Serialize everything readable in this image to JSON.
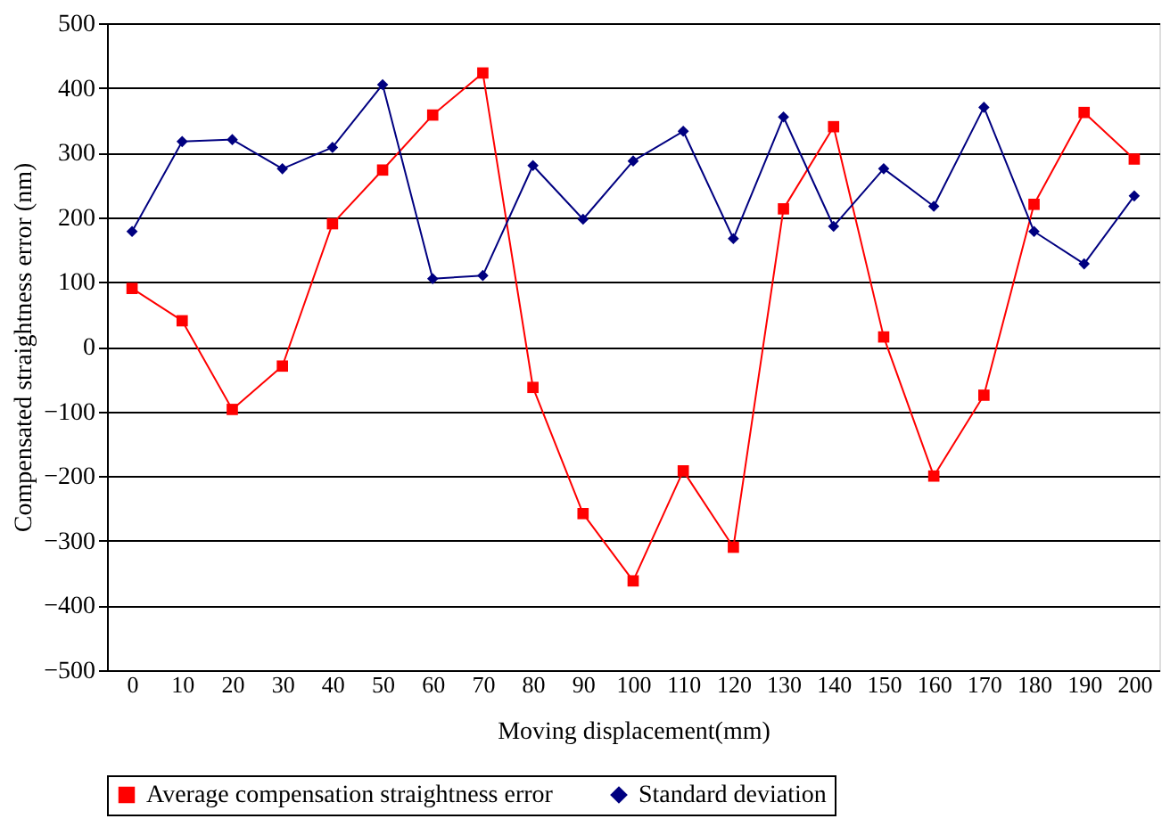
{
  "chart_data": {
    "type": "line",
    "xlabel": "Moving displacement(mm)",
    "ylabel": "Compensated straightness error (nm)",
    "categories": [
      "0",
      "10",
      "20",
      "30",
      "40",
      "50",
      "60",
      "70",
      "80",
      "90",
      "100",
      "110",
      "120",
      "130",
      "140",
      "150",
      "160",
      "170",
      "180",
      "190",
      "200"
    ],
    "series": [
      {
        "name": "Average compensation straightness error",
        "color": "#ff0000",
        "marker": "square",
        "values": [
          90,
          40,
          -97,
          -30,
          190,
          273,
          358,
          423,
          -63,
          -258,
          -362,
          -192,
          -310,
          213,
          340,
          15,
          -200,
          -75,
          220,
          362,
          290
        ]
      },
      {
        "name": "Standard deviation",
        "color": "#000080",
        "marker": "diamond",
        "values": [
          178,
          317,
          320,
          275,
          308,
          405,
          105,
          110,
          280,
          197,
          287,
          333,
          167,
          355,
          186,
          275,
          217,
          370,
          178,
          128,
          233
        ]
      }
    ],
    "ylim": [
      -500,
      500
    ],
    "yticks": [
      -500,
      -400,
      -300,
      -200,
      -100,
      0,
      100,
      200,
      300,
      400,
      500
    ],
    "grid": "y",
    "legend": "bottom",
    "line_style": "solid"
  }
}
